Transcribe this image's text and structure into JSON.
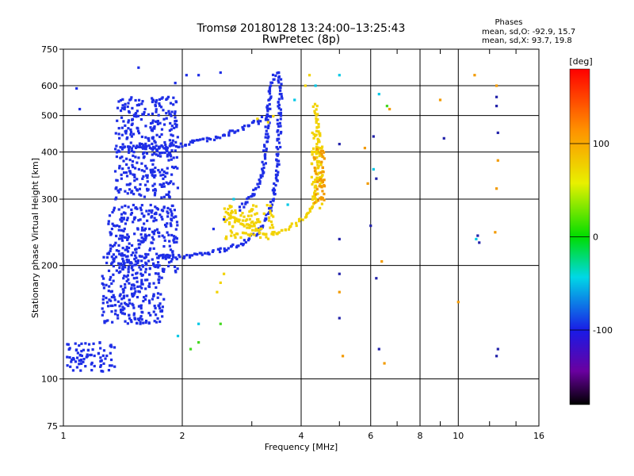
{
  "chart_data": {
    "type": "scatter",
    "title": "Tromsø 20180128 13:24:00–13:25:43",
    "subtitle": "RwPretec (8p)",
    "xlabel": "Frequency [MHz]",
    "ylabel": "Stationary phase Virtual Height [km]",
    "x_scale": "log",
    "y_scale": "log",
    "xlim": [
      1,
      16
    ],
    "ylim": [
      75,
      750
    ],
    "x_ticks": [
      1,
      2,
      4,
      6,
      8,
      10,
      16
    ],
    "y_ticks": [
      75,
      100,
      200,
      300,
      400,
      500,
      600,
      750
    ],
    "grid": true,
    "stats": {
      "heading": "Phases",
      "line_o": "mean, sd,O: -92.9, 15.7",
      "line_x": "mean, sd,X:  93.7, 19.8"
    },
    "colorbar": {
      "label": "[deg]",
      "min": -180,
      "max": 180,
      "ticks": [
        100,
        0,
        -100
      ]
    },
    "series": [
      {
        "phase_deg": -100,
        "color": "#1e2ee6",
        "traces": [
          {
            "kind": "line",
            "points": [
              [
                1.42,
                415
              ],
              [
                1.6,
                412
              ],
              [
                1.8,
                413
              ],
              [
                2.0,
                418
              ],
              [
                2.3,
                430
              ],
              [
                2.6,
                445
              ],
              [
                2.9,
                465
              ],
              [
                3.2,
                490
              ],
              [
                3.35,
                498
              ]
            ]
          },
          {
            "kind": "line",
            "points": [
              [
                1.75,
                212
              ],
              [
                2.0,
                210
              ],
              [
                2.3,
                215
              ],
              [
                2.6,
                222
              ],
              [
                2.9,
                232
              ],
              [
                3.1,
                245
              ],
              [
                3.25,
                260
              ],
              [
                3.35,
                285
              ],
              [
                3.45,
                330
              ],
              [
                3.5,
                390
              ],
              [
                3.52,
                450
              ],
              [
                3.53,
                520
              ],
              [
                3.55,
                580
              ],
              [
                3.53,
                630
              ],
              [
                3.48,
                650
              ],
              [
                3.42,
                640
              ],
              [
                3.36,
                600
              ],
              [
                3.3,
                520
              ],
              [
                3.28,
                450
              ],
              [
                3.25,
                400
              ],
              [
                3.2,
                355
              ],
              [
                3.1,
                320
              ],
              [
                2.95,
                300
              ],
              [
                2.8,
                283
              ]
            ]
          },
          {
            "kind": "cloud",
            "x": [
              1.35,
              1.95
            ],
            "y": [
              300,
              560
            ]
          },
          {
            "kind": "cloud",
            "x": [
              1.3,
              1.95
            ],
            "y": [
              190,
              290
            ]
          },
          {
            "kind": "cloud",
            "x": [
              1.25,
              1.8
            ],
            "y": [
              140,
              215
            ]
          },
          {
            "kind": "cloud",
            "x": [
              1.02,
              1.35
            ],
            "y": [
              104,
              125
            ]
          },
          {
            "kind": "scatter",
            "points": [
              [
                1.55,
                670
              ],
              [
                1.92,
                610
              ],
              [
                2.05,
                640
              ],
              [
                2.2,
                640
              ],
              [
                2.5,
                650
              ],
              [
                1.08,
                590
              ],
              [
                1.1,
                520
              ],
              [
                2.4,
                250
              ],
              [
                2.55,
                265
              ],
              [
                2.8,
                280
              ]
            ]
          }
        ]
      },
      {
        "phase_deg": 110,
        "color": "#f2d200",
        "traces": [
          {
            "kind": "line",
            "points": [
              [
                2.6,
                272
              ],
              [
                2.8,
                262
              ],
              [
                3.0,
                252
              ],
              [
                3.2,
                245
              ],
              [
                3.4,
                243
              ],
              [
                3.6,
                246
              ],
              [
                3.8,
                254
              ],
              [
                4.0,
                265
              ],
              [
                4.2,
                275
              ],
              [
                4.3,
                290
              ],
              [
                4.35,
                320
              ],
              [
                4.4,
                360
              ],
              [
                4.43,
                420
              ],
              [
                4.42,
                470
              ],
              [
                4.38,
                510
              ],
              [
                4.32,
                540
              ]
            ]
          },
          {
            "kind": "cloud",
            "x": [
              4.25,
              4.55
            ],
            "y": [
              280,
              460
            ]
          },
          {
            "kind": "cloud",
            "x": [
              2.55,
              3.4
            ],
            "y": [
              235,
              290
            ]
          },
          {
            "kind": "scatter",
            "points": [
              [
                3.1,
                490
              ],
              [
                3.3,
                480
              ],
              [
                3.4,
                498
              ],
              [
                4.1,
                600
              ],
              [
                4.2,
                640
              ],
              [
                2.45,
                170
              ],
              [
                2.5,
                180
              ],
              [
                2.55,
                190
              ]
            ]
          }
        ]
      },
      {
        "phase_deg": 130,
        "color": "#f29a00",
        "traces": [
          {
            "kind": "cloud",
            "x": [
              4.3,
              4.6
            ],
            "y": [
              290,
              420
            ]
          },
          {
            "kind": "scatter",
            "points": [
              [
                5.9,
                330
              ],
              [
                5.8,
                410
              ],
              [
                6.4,
                205
              ],
              [
                6.7,
                520
              ],
              [
                9.0,
                550
              ],
              [
                11.0,
                640
              ],
              [
                12.5,
                600
              ],
              [
                12.6,
                380
              ],
              [
                12.5,
                320
              ],
              [
                12.4,
                245
              ],
              [
                5.1,
                115
              ],
              [
                6.5,
                110
              ],
              [
                5.0,
                170
              ],
              [
                10.0,
                160
              ]
            ]
          }
        ]
      },
      {
        "phase_deg": -110,
        "color": "#2222aa",
        "traces": [
          {
            "kind": "scatter",
            "points": [
              [
                5.0,
                420
              ],
              [
                5.0,
                235
              ],
              [
                5.0,
                190
              ],
              [
                5.0,
                145
              ],
              [
                6.2,
                340
              ],
              [
                6.2,
                185
              ],
              [
                6.3,
                120
              ],
              [
                12.5,
                560
              ],
              [
                12.5,
                530
              ],
              [
                12.6,
                450
              ],
              [
                12.6,
                120
              ],
              [
                12.5,
                115
              ],
              [
                11.2,
                240
              ],
              [
                11.3,
                230
              ],
              [
                9.2,
                435
              ],
              [
                6.1,
                440
              ],
              [
                6.0,
                255
              ]
            ]
          }
        ]
      },
      {
        "phase_deg": -60,
        "color": "#00c8e6",
        "traces": [
          {
            "kind": "scatter",
            "points": [
              [
                5.0,
                640
              ],
              [
                4.35,
                600
              ],
              [
                3.85,
                550
              ],
              [
                3.7,
                290
              ],
              [
                6.3,
                570
              ],
              [
                2.7,
                300
              ],
              [
                2.2,
                140
              ],
              [
                1.95,
                130
              ],
              [
                6.1,
                360
              ],
              [
                11.1,
                235
              ]
            ]
          }
        ]
      },
      {
        "phase_deg": 60,
        "color": "#44d820",
        "traces": [
          {
            "kind": "scatter",
            "points": [
              [
                2.2,
                125
              ],
              [
                2.1,
                120
              ],
              [
                6.6,
                530
              ],
              [
                2.5,
                140
              ]
            ]
          }
        ]
      }
    ]
  }
}
